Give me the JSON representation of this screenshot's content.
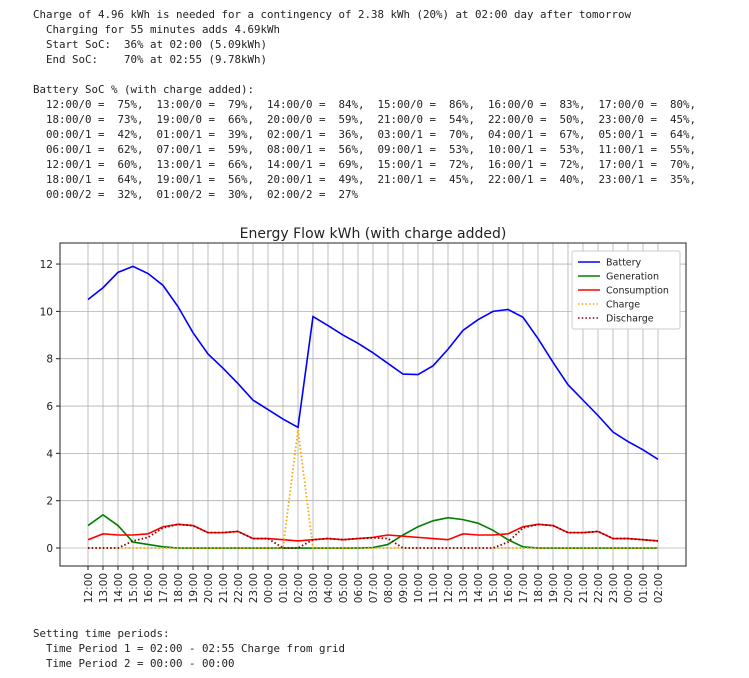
{
  "header_lines": [
    "Charge of 4.96 kWh is needed for a contingency of 2.38 kWh (20%) at 02:00 day after tomorrow",
    "  Charging for 55 minutes adds 4.69kWh",
    "  Start SoC:  36% at 02:00 (5.09kWh)",
    "  End SoC:    70% at 02:55 (9.78kWh)"
  ],
  "soc_title": "Battery SoC % (with charge added):",
  "soc_lines": [
    "  12:00/0 =  75%,  13:00/0 =  79%,  14:00/0 =  84%,  15:00/0 =  86%,  16:00/0 =  83%,  17:00/0 =  80%,",
    "  18:00/0 =  73%,  19:00/0 =  66%,  20:00/0 =  59%,  21:00/0 =  54%,  22:00/0 =  50%,  23:00/0 =  45%,",
    "  00:00/1 =  42%,  01:00/1 =  39%,  02:00/1 =  36%,  03:00/1 =  70%,  04:00/1 =  67%,  05:00/1 =  64%,",
    "  06:00/1 =  62%,  07:00/1 =  59%,  08:00/1 =  56%,  09:00/1 =  53%,  10:00/1 =  53%,  11:00/1 =  55%,",
    "  12:00/1 =  60%,  13:00/1 =  66%,  14:00/1 =  69%,  15:00/1 =  72%,  16:00/1 =  72%,  17:00/1 =  70%,",
    "  18:00/1 =  64%,  19:00/1 =  56%,  20:00/1 =  49%,  21:00/1 =  45%,  22:00/1 =  40%,  23:00/1 =  35%,",
    "  00:00/2 =  32%,  01:00/2 =  30%,  02:00/2 =  27%"
  ],
  "footer_lines": [
    "Setting time periods:",
    "  Time Period 1 = 02:00 - 02:55 Charge from grid",
    "  Time Period 2 = 00:00 - 00:00"
  ],
  "chart_data": {
    "type": "line",
    "title": "Energy Flow kWh (with charge added)",
    "categories": [
      "12:00",
      "13:00",
      "14:00",
      "15:00",
      "16:00",
      "17:00",
      "18:00",
      "19:00",
      "20:00",
      "21:00",
      "22:00",
      "23:00",
      "00:00",
      "01:00",
      "02:00",
      "03:00",
      "04:00",
      "05:00",
      "06:00",
      "07:00",
      "08:00",
      "09:00",
      "10:00",
      "11:00",
      "12:00",
      "13:00",
      "14:00",
      "15:00",
      "16:00",
      "17:00",
      "18:00",
      "19:00",
      "20:00",
      "21:00",
      "22:00",
      "23:00",
      "00:00",
      "01:00",
      "02:00"
    ],
    "series": [
      {
        "name": "Battery",
        "color": "#0000ff",
        "style": "solid",
        "values": [
          10.5,
          11.0,
          11.65,
          11.9,
          11.6,
          11.1,
          10.2,
          9.1,
          8.2,
          7.6,
          6.95,
          6.25,
          5.85,
          5.45,
          5.1,
          9.78,
          9.4,
          9.0,
          8.65,
          8.25,
          7.8,
          7.35,
          7.33,
          7.7,
          8.4,
          9.2,
          9.65,
          10.0,
          10.08,
          9.75,
          8.85,
          7.85,
          6.9,
          6.25,
          5.6,
          4.9,
          4.5,
          4.15,
          3.75
        ]
      },
      {
        "name": "Generation",
        "color": "#008000",
        "style": "solid",
        "values": [
          0.95,
          1.4,
          0.95,
          0.25,
          0.15,
          0.05,
          0,
          0,
          0,
          0,
          0,
          0,
          0,
          0,
          0,
          0,
          0,
          0,
          0,
          0.02,
          0.15,
          0.55,
          0.9,
          1.15,
          1.28,
          1.2,
          1.05,
          0.75,
          0.35,
          0.05,
          0,
          0,
          0,
          0,
          0,
          0,
          0,
          0,
          0
        ]
      },
      {
        "name": "Consumption",
        "color": "#ff0000",
        "style": "solid",
        "values": [
          0.35,
          0.6,
          0.55,
          0.55,
          0.6,
          0.9,
          1.0,
          0.95,
          0.65,
          0.65,
          0.7,
          0.4,
          0.4,
          0.35,
          0.3,
          0.35,
          0.4,
          0.35,
          0.4,
          0.45,
          0.55,
          0.5,
          0.45,
          0.4,
          0.35,
          0.6,
          0.55,
          0.55,
          0.6,
          0.9,
          1.0,
          0.95,
          0.65,
          0.65,
          0.7,
          0.4,
          0.4,
          0.35,
          0.3
        ]
      },
      {
        "name": "Charge",
        "color": "#ffa500",
        "style": "dotted",
        "values": [
          0,
          0,
          0,
          0,
          0,
          0,
          0,
          0,
          0,
          0,
          0,
          0,
          0,
          0,
          5.0,
          0,
          0,
          0,
          0,
          0,
          0,
          0,
          0,
          0,
          0,
          0,
          0,
          0,
          0,
          0,
          0,
          0,
          0,
          0,
          0,
          0,
          0,
          0,
          0
        ]
      },
      {
        "name": "Discharge",
        "color": "#8b0000",
        "style": "dotted",
        "values": [
          0,
          0,
          0,
          0.3,
          0.45,
          0.85,
          1.0,
          0.95,
          0.65,
          0.65,
          0.7,
          0.4,
          0.4,
          0,
          0,
          0.35,
          0.4,
          0.35,
          0.4,
          0.43,
          0.4,
          0,
          0,
          0,
          0,
          0,
          0,
          0,
          0.25,
          0.85,
          1.0,
          0.95,
          0.65,
          0.65,
          0.7,
          0.4,
          0.4,
          0.35,
          0.3
        ]
      }
    ],
    "ylim": [
      -0.76,
      12.89
    ],
    "yticks": [
      0,
      2,
      4,
      6,
      8,
      10,
      12
    ],
    "grid": true,
    "legend": "upper right"
  }
}
